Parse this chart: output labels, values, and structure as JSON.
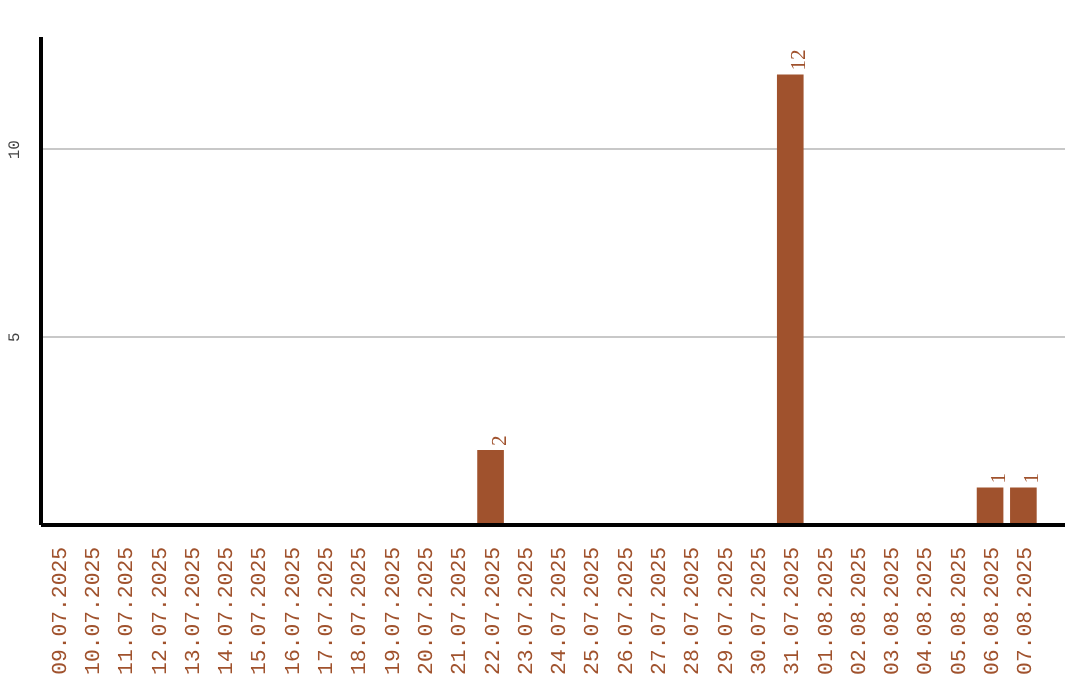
{
  "chart_data": {
    "type": "bar",
    "categories": [
      "09.07.2025",
      "10.07.2025",
      "11.07.2025",
      "12.07.2025",
      "13.07.2025",
      "14.07.2025",
      "15.07.2025",
      "16.07.2025",
      "17.07.2025",
      "18.07.2025",
      "19.07.2025",
      "20.07.2025",
      "21.07.2025",
      "22.07.2025",
      "23.07.2025",
      "24.07.2025",
      "25.07.2025",
      "26.07.2025",
      "27.07.2025",
      "28.07.2025",
      "29.07.2025",
      "30.07.2025",
      "31.07.2025",
      "01.08.2025",
      "02.08.2025",
      "03.08.2025",
      "04.08.2025",
      "05.08.2025",
      "06.08.2025",
      "07.08.2025"
    ],
    "values": [
      0,
      0,
      0,
      0,
      0,
      0,
      0,
      0,
      0,
      0,
      0,
      0,
      0,
      2,
      0,
      0,
      0,
      0,
      0,
      0,
      0,
      0,
      12,
      0,
      0,
      0,
      0,
      0,
      1,
      1
    ],
    "value_labels": [
      null,
      null,
      null,
      null,
      null,
      null,
      null,
      null,
      null,
      null,
      null,
      null,
      null,
      "2",
      null,
      null,
      null,
      null,
      null,
      null,
      null,
      null,
      "12",
      null,
      null,
      null,
      null,
      null,
      "1",
      "1"
    ],
    "color": "#a0522d",
    "ylim": [
      0,
      13
    ],
    "yticks": [
      5,
      10
    ],
    "grid": "y"
  }
}
